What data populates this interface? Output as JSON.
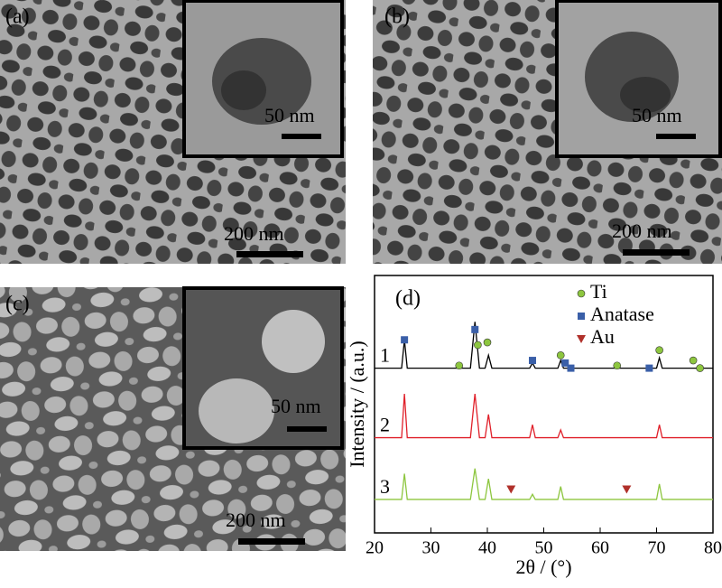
{
  "panels": [
    {
      "label": "(a)",
      "inset_scale": "50 nm",
      "scale": "200 nm"
    },
    {
      "label": "(b)",
      "inset_scale": "50 nm",
      "scale": "200 nm"
    },
    {
      "label": "(c)",
      "inset_scale": "50 nm",
      "scale": "200 nm"
    }
  ],
  "chart_data": {
    "type": "line",
    "label": "(d)",
    "xlabel": "2θ / (°)",
    "ylabel": "Intensity / (a.u.)",
    "xlim": [
      20,
      80
    ],
    "xticks": [
      20,
      30,
      40,
      50,
      60,
      70,
      80
    ],
    "ylim": [
      0,
      100
    ],
    "x": [
      20,
      24.8,
      25.3,
      25.8,
      37,
      37.8,
      38.6,
      39.6,
      40.2,
      40.8,
      47.5,
      48,
      48.5,
      52.5,
      53,
      53.5,
      70,
      70.5,
      71,
      80
    ],
    "series": [
      {
        "name": "1",
        "color": "#000000",
        "values": [
          64,
          64,
          75,
          64,
          64,
          82,
          64,
          64,
          69,
          64,
          64,
          66,
          64,
          64,
          67,
          64,
          64,
          68,
          64,
          64
        ]
      },
      {
        "name": "2",
        "color": "#e0202a",
        "values": [
          37,
          37,
          54,
          37,
          37,
          54,
          37,
          37,
          46,
          37,
          37,
          42,
          37,
          37,
          40,
          37,
          37,
          42,
          37,
          37
        ]
      },
      {
        "name": "3",
        "color": "#8dc63f",
        "values": [
          13,
          13,
          23,
          13,
          13,
          25,
          13,
          13,
          21,
          13,
          13,
          15,
          13,
          13,
          18,
          13,
          13,
          19,
          13,
          13
        ]
      }
    ],
    "markers": [
      {
        "name": "Ti",
        "shape": "circle",
        "color": "#8dc63f",
        "x": [
          35,
          38.3,
          40,
          53,
          63,
          70.5,
          76.5,
          77.7
        ],
        "values": [
          65,
          73,
          74,
          69,
          65,
          71,
          67,
          64
        ]
      },
      {
        "name": "Anatase",
        "shape": "square",
        "color": "#3a5fa8",
        "x": [
          25.3,
          37.8,
          48,
          53.8,
          54.8,
          68.7
        ],
        "values": [
          75,
          79,
          67,
          66,
          64,
          64
        ]
      },
      {
        "name": "Au",
        "shape": "triangle",
        "color": "#b0302a",
        "x": [
          44.2,
          64.7
        ],
        "values": [
          17,
          17
        ]
      }
    ]
  }
}
